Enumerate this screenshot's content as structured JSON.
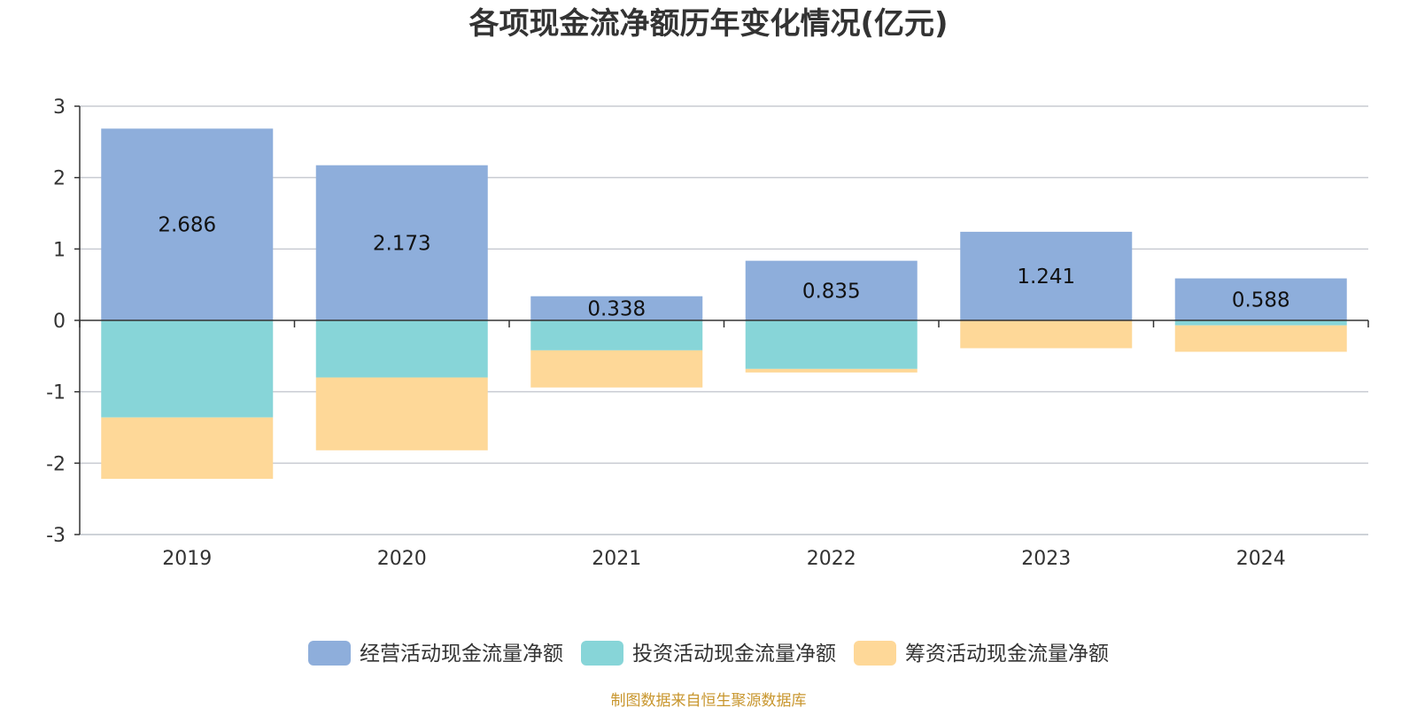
{
  "chart_data": {
    "type": "bar",
    "stacked": true,
    "title": "各项现金流净额历年变化情况(亿元)",
    "categories": [
      "2019",
      "2020",
      "2021",
      "2022",
      "2023",
      "2024"
    ],
    "series": [
      {
        "name": "经营活动现金流量净额",
        "color": "#8eaedb",
        "values": [
          2.686,
          2.173,
          0.338,
          0.835,
          1.241,
          0.588
        ],
        "show_labels": true
      },
      {
        "name": "投资活动现金流量净额",
        "color": "#87d5d8",
        "values": [
          -1.36,
          -0.8,
          -0.42,
          -0.68,
          0.0,
          -0.07
        ],
        "show_labels": false
      },
      {
        "name": "筹资活动现金流量净额",
        "color": "#fed898",
        "values": [
          -0.86,
          -1.02,
          -0.52,
          -0.05,
          -0.39,
          -0.37
        ],
        "show_labels": false
      }
    ],
    "ylim": [
      -3,
      3
    ],
    "yticks": [
      3,
      2,
      1,
      0,
      -1,
      -2,
      -3
    ],
    "grid": true,
    "legend_position": "bottom-center",
    "source": "制图数据来自恒生聚源数据库"
  }
}
